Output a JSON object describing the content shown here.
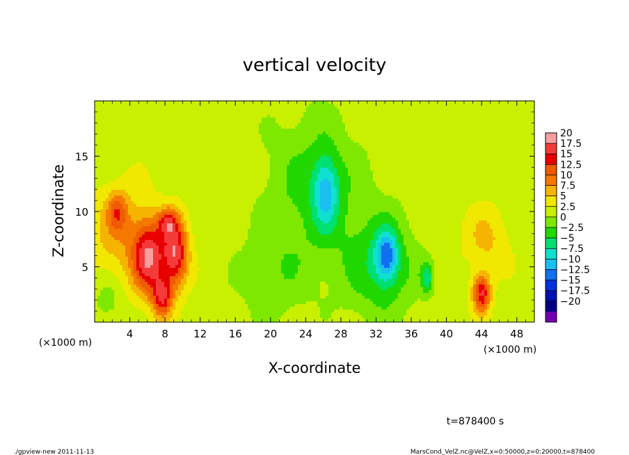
{
  "chart_data": {
    "type": "heatmap",
    "title": "vertical velocity",
    "xlabel": "X-coordinate",
    "ylabel": "Z-coordinate",
    "x_unit": "(×1000 m)",
    "xlim": [
      0,
      50
    ],
    "ylim": [
      0,
      20
    ],
    "x_ticks": [
      4,
      8,
      12,
      16,
      20,
      24,
      28,
      32,
      36,
      40,
      44,
      48
    ],
    "y_ticks": [
      5,
      10,
      15
    ],
    "grid": false,
    "background_value": 1.5,
    "features": [
      {
        "x": 6.2,
        "z": 5.8,
        "value": 15,
        "sx": 1.3,
        "sz": 2.3
      },
      {
        "x": 9.2,
        "z": 6.2,
        "value": 15,
        "sx": 1.0,
        "sz": 2.1
      },
      {
        "x": 7.7,
        "z": 2.2,
        "value": 12,
        "sx": 0.8,
        "sz": 1.3
      },
      {
        "x": 8.3,
        "z": 9.0,
        "value": 9,
        "sx": 0.8,
        "sz": 0.9
      },
      {
        "x": 2.6,
        "z": 10.0,
        "value": 7,
        "sx": 0.8,
        "sz": 1.2
      },
      {
        "x": 3.0,
        "z": 8.0,
        "value": 5,
        "sx": 2.5,
        "sz": 3.0
      },
      {
        "x": 44.0,
        "z": 2.6,
        "value": 14,
        "sx": 0.7,
        "sz": 1.2
      },
      {
        "x": 44.5,
        "z": 7.5,
        "value": 4,
        "sx": 1.8,
        "sz": 2.0
      },
      {
        "x": 26.3,
        "z": 11.8,
        "value": -9,
        "sx": 1.0,
        "sz": 2.2
      },
      {
        "x": 25.0,
        "z": 12.0,
        "value": -5,
        "sx": 4.0,
        "sz": 5.0
      },
      {
        "x": 33.2,
        "z": 6.0,
        "value": -11,
        "sx": 0.9,
        "sz": 1.6
      },
      {
        "x": 32.5,
        "z": 5.0,
        "value": -6,
        "sx": 3.0,
        "sz": 3.5
      },
      {
        "x": 37.8,
        "z": 4.0,
        "value": -7,
        "sx": 0.5,
        "sz": 1.0
      },
      {
        "x": 20.0,
        "z": 4.0,
        "value": -3,
        "sx": 3.0,
        "sz": 3.0
      },
      {
        "x": 1.5,
        "z": 2.0,
        "value": -3,
        "sx": 1.2,
        "sz": 1.5
      }
    ],
    "colorbar": {
      "labels": [
        "20",
        "17.5",
        "15",
        "12.5",
        "10",
        "7.5",
        "5",
        "2.5",
        "0",
        "−2.5",
        "−5",
        "−7.5",
        "−10",
        "−12.5",
        "−15",
        "−17.5",
        "−20"
      ],
      "colors": [
        "#f8a0a0",
        "#f53a3a",
        "#e80000",
        "#f05a00",
        "#f57800",
        "#f5b400",
        "#f0e800",
        "#c8f000",
        "#7ee800",
        "#20d800",
        "#00e070",
        "#10e0d0",
        "#18c0f0",
        "#1070f0",
        "#0030e0",
        "#0010b0",
        "#000080",
        "#7000b0"
      ]
    }
  },
  "footer": {
    "time": "t=878400 s",
    "program": "./gpview-new  2011-11-13",
    "source": "MarsCond_VelZ.nc@VelZ,x=0:50000,z=0:20000,t=878400"
  }
}
